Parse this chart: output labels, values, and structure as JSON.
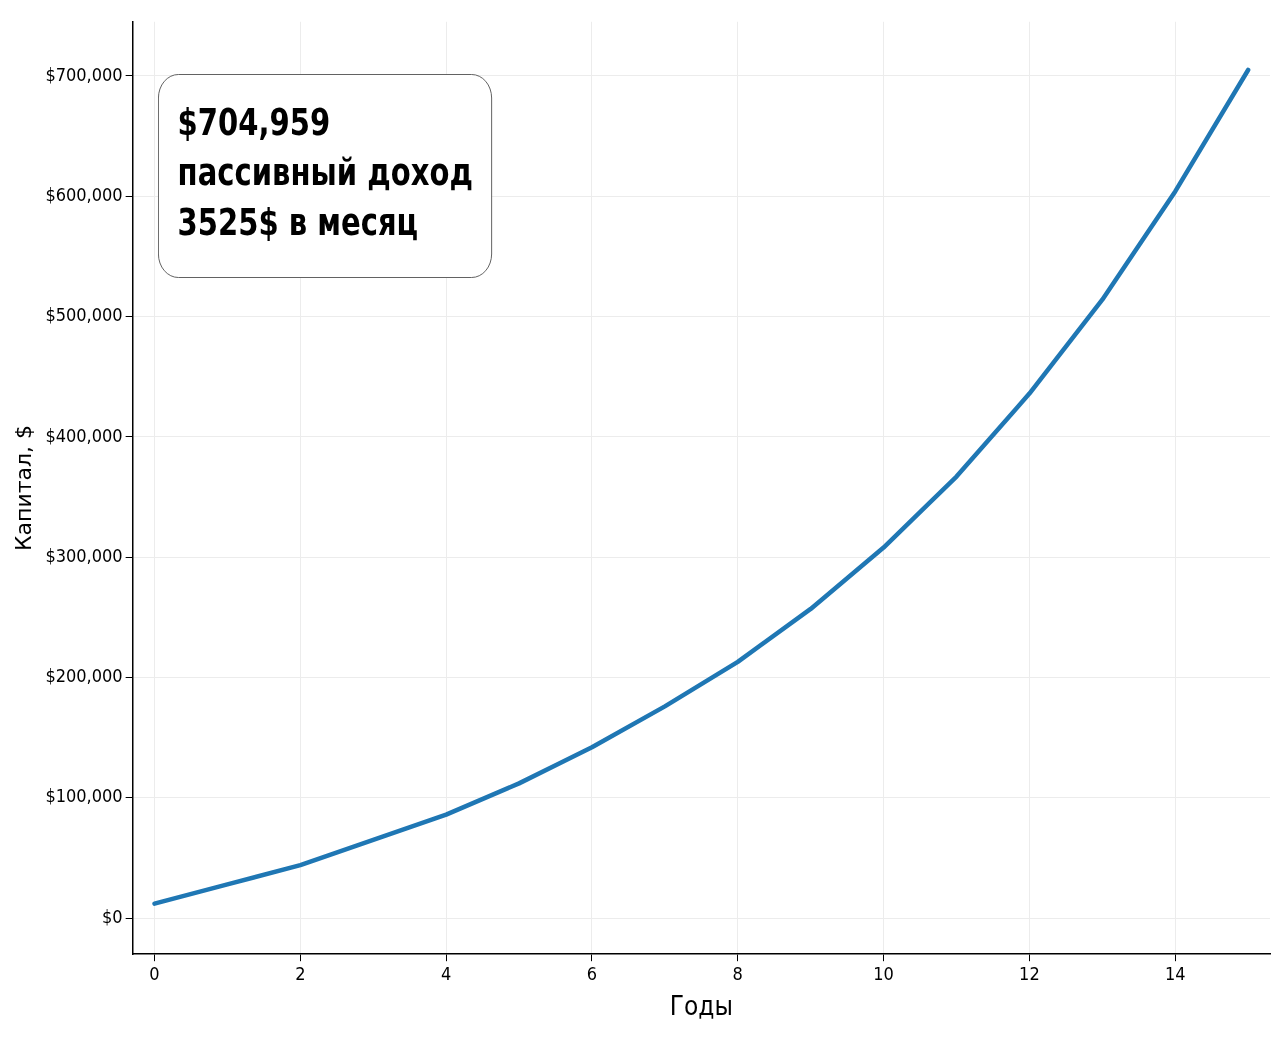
{
  "chart_data": {
    "type": "line",
    "xlabel": "Годы",
    "ylabel": "Капитал, $",
    "x": [
      0,
      1,
      2,
      3,
      4,
      5,
      6,
      7,
      8,
      9,
      10,
      11,
      12,
      13,
      14,
      15
    ],
    "series": [
      {
        "color": "#1f77b4",
        "values": [
          12000,
          28000,
          44000,
          65000,
          86000,
          112000,
          142000,
          176000,
          213000,
          257000,
          308000,
          367000,
          436000,
          514000,
          604000,
          704959
        ]
      }
    ],
    "xlim": [
      -0.3,
      15.3
    ],
    "xticks": [
      0,
      2,
      4,
      6,
      8,
      10,
      12,
      14
    ],
    "ylim": [
      -30000,
      745000
    ],
    "yticks": [
      {
        "value": 0,
        "label": "$0"
      },
      {
        "value": 100000,
        "label": "$100,000"
      },
      {
        "value": 200000,
        "label": "$200,000"
      },
      {
        "value": 300000,
        "label": "$300,000"
      },
      {
        "value": 400000,
        "label": "$400,000"
      },
      {
        "value": 500000,
        "label": "$500,000"
      },
      {
        "value": 600000,
        "label": "$600,000"
      },
      {
        "value": 700000,
        "label": "$700,000"
      }
    ],
    "grid": true,
    "legend": false,
    "marker": "none",
    "line_style": "solid",
    "annotations": [
      "$704,959\nпассивный доход\n3525$ в месяц"
    ]
  }
}
